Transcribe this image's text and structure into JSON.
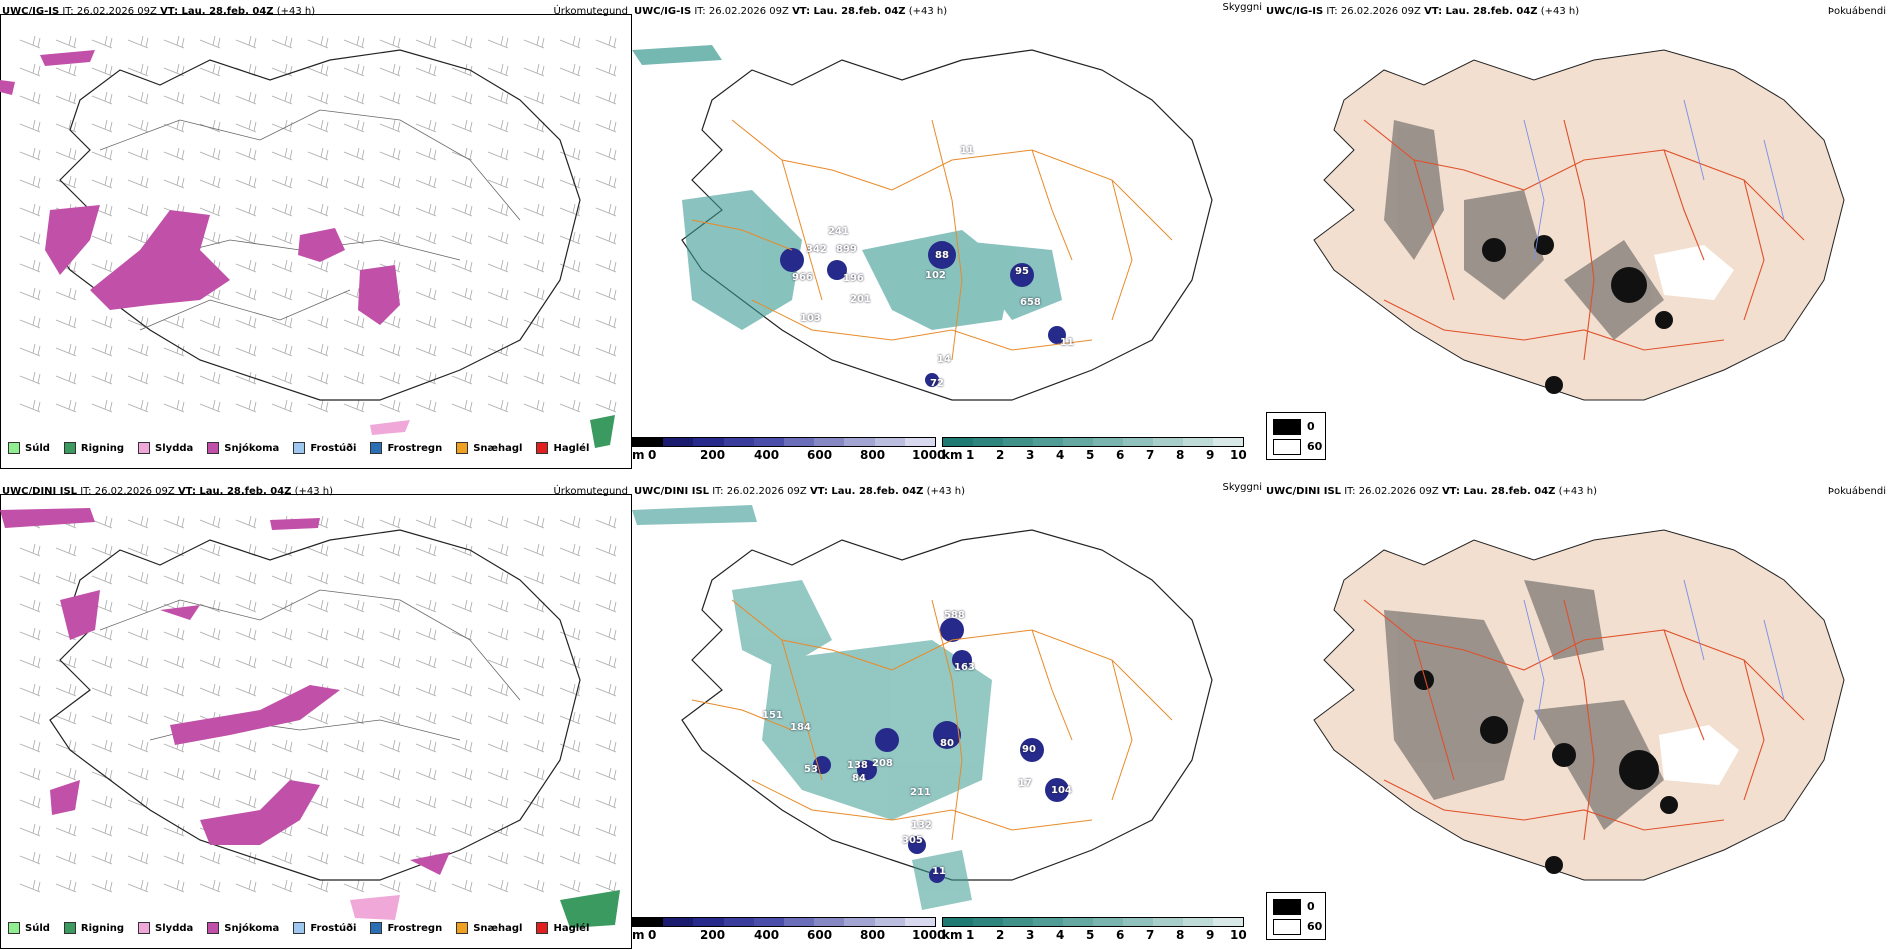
{
  "rows": [
    {
      "model": "UWC/IG-IS",
      "it": "IT: 26.02.2026 09Z",
      "vt": "VT: Lau. 28.feb. 04Z",
      "lead": "(+43 h)",
      "numbers": [
        "241",
        "342",
        "899",
        "966",
        "196",
        "88",
        "95",
        "658",
        "102",
        "201",
        "103",
        "14",
        "11",
        "72",
        "11"
      ]
    },
    {
      "model": "UWC/DINI ISL",
      "it": "IT: 26.02.2026 09Z",
      "vt": "VT: Lau. 28.feb. 04Z",
      "lead": "(+43 h)",
      "numbers": [
        "588",
        "163",
        "151",
        "208",
        "80",
        "90",
        "17",
        "104",
        "138",
        "84",
        "305",
        "132",
        "211",
        "11",
        "53",
        "184"
      ]
    }
  ],
  "panel_titles": {
    "precip": "Úrkomutegund",
    "cloud": "Skyggni",
    "fog": "Þokuábendi"
  },
  "precip_legend": [
    {
      "label": "Súld",
      "color": "#90ee90"
    },
    {
      "label": "Rigning",
      "color": "#3a9a5f"
    },
    {
      "label": "Slydda",
      "color": "#f0a8d8"
    },
    {
      "label": "Snjókoma",
      "color": "#c050a8"
    },
    {
      "label": "Frostúði",
      "color": "#9ec8ee"
    },
    {
      "label": "Frostregn",
      "color": "#2a6fb5"
    },
    {
      "label": "Snæhagl",
      "color": "#f0a020"
    },
    {
      "label": "Haglél",
      "color": "#e02020"
    }
  ],
  "cloud_base_scale": {
    "unit": "m",
    "ticks": [
      "0",
      "200",
      "400",
      "600",
      "800",
      "1000"
    ],
    "colors": [
      "#000000",
      "#1a1a6e",
      "#262a8a",
      "#3a3d9c",
      "#4a4ea8",
      "#6a6db8",
      "#8688c4",
      "#a2a4d2",
      "#bcbee0",
      "#d8d8ee"
    ]
  },
  "visibility_scale": {
    "unit": "km",
    "ticks": [
      "1",
      "2",
      "3",
      "4",
      "5",
      "6",
      "7",
      "8",
      "9",
      "10"
    ],
    "colors": [
      "#1f7a73",
      "#2e857e",
      "#3f918a",
      "#519c96",
      "#65a8a2",
      "#7ab4af",
      "#90c1bc",
      "#a7cec9",
      "#bfdbd7",
      "#d7e8e6"
    ]
  },
  "fog_legend": [
    {
      "label": "0",
      "color": "#000000"
    },
    {
      "label": "60",
      "color": "#ffffff"
    }
  ],
  "colors": {
    "road": "#e88a2a",
    "coast": "#000000",
    "land_fog": "#f2dfd0",
    "fog_roads": "#e0502a",
    "rivers": "#7a8ee8",
    "teal": "#3a9a92",
    "snow": "#c050a8"
  }
}
